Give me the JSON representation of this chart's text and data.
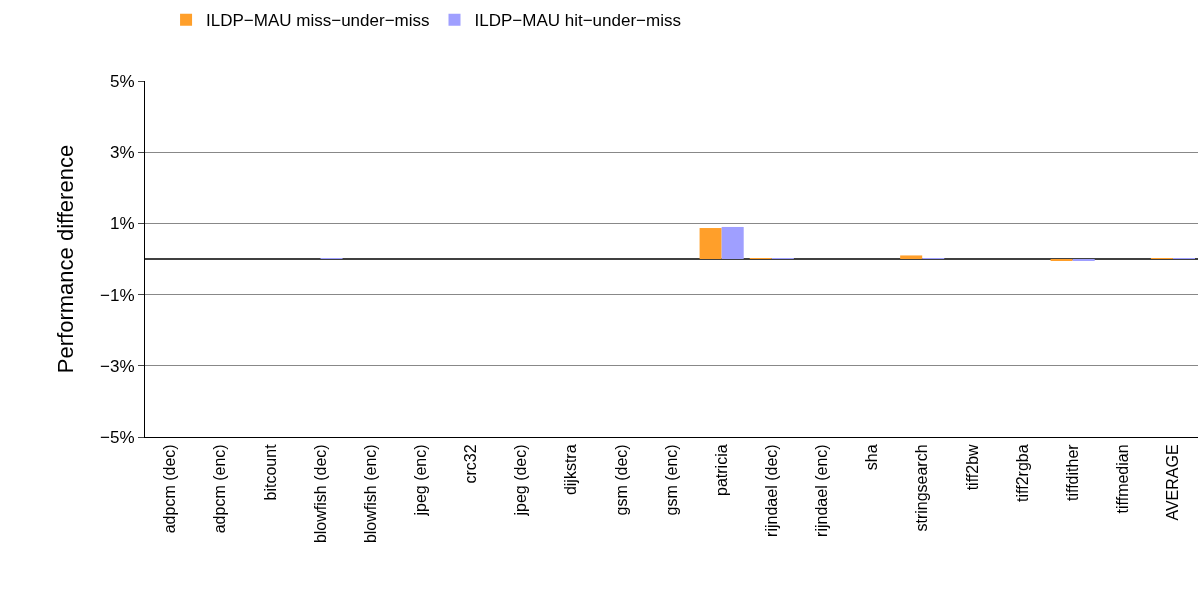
{
  "chart_data": {
    "type": "bar",
    "ylabel": "Performance difference",
    "categories": [
      "adpcm (dec)",
      "adpcm (enc)",
      "bitcount",
      "blowfish (dec)",
      "blowfish (enc)",
      "jpeg (enc)",
      "crc32",
      "jpeg (dec)",
      "dijkstra",
      "gsm (dec)",
      "gsm (enc)",
      "patricia",
      "rijndael (dec)",
      "rijndael (enc)",
      "sha",
      "stringsearch",
      "tiff2bw",
      "tiff2rgba",
      "tiffdither",
      "tiffmedian",
      "AVERAGE"
    ],
    "series": [
      {
        "name": "ILDP−MAU miss−under−miss",
        "color": "#ff9f2a",
        "values": [
          0,
          0,
          0,
          0,
          0,
          0,
          0,
          0,
          0,
          0,
          0,
          0.87,
          0.02,
          0,
          0,
          0.1,
          0,
          0,
          -0.05,
          0,
          0.02
        ]
      },
      {
        "name": "ILDP−MAU hit−under−miss",
        "color": "#9f9fff",
        "values": [
          0,
          0,
          0,
          0.02,
          0,
          0,
          0,
          0,
          0,
          0,
          0,
          0.9,
          0.01,
          0,
          0,
          0.02,
          0,
          0,
          -0.05,
          0,
          0.01
        ]
      }
    ],
    "ylim": [
      -5,
      5
    ],
    "yticks": [
      {
        "value": -5,
        "label": "−5%"
      },
      {
        "value": -3,
        "label": "−3%"
      },
      {
        "value": -1,
        "label": "−1%"
      },
      {
        "value": 1,
        "label": "1%"
      },
      {
        "value": 3,
        "label": "3%"
      },
      {
        "value": 5,
        "label": "5%"
      }
    ],
    "grid": "y",
    "legend": "top left",
    "ref_lines": [
      {
        "axis": "y",
        "value": 0,
        "color": "#000000"
      }
    ]
  }
}
